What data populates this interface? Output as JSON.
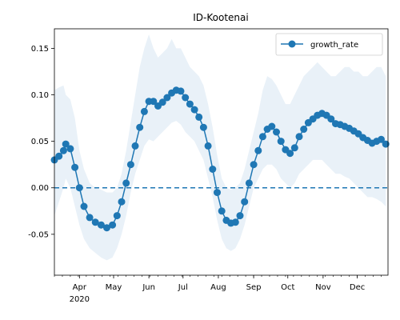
{
  "chart_data": {
    "type": "line",
    "title": "ID-Kootenai",
    "xlabel": "",
    "ylabel": "",
    "xlim": [
      "2020-03-10",
      "2020-12-28"
    ],
    "ylim": [
      -0.094,
      0.171
    ],
    "x_ticks": [
      {
        "date": "2020-04-01",
        "label": "Apr"
      },
      {
        "date": "2020-05-01",
        "label": "May"
      },
      {
        "date": "2020-06-01",
        "label": "Jun"
      },
      {
        "date": "2020-07-01",
        "label": "Jul"
      },
      {
        "date": "2020-08-01",
        "label": "Aug"
      },
      {
        "date": "2020-09-01",
        "label": "Sep"
      },
      {
        "date": "2020-10-01",
        "label": "Oct"
      },
      {
        "date": "2020-11-01",
        "label": "Nov"
      },
      {
        "date": "2020-12-01",
        "label": "Dec"
      }
    ],
    "year_label": "2020",
    "y_ticks": [
      "-0.05",
      "0.00",
      "0.05",
      "0.10",
      "0.15"
    ],
    "reference_line": {
      "value": 0,
      "style": "dashed"
    },
    "legend": {
      "position": "top-right",
      "entries": [
        "growth_rate"
      ]
    },
    "colors": {
      "line": "#1f77b4",
      "band": "#dbe8f4"
    },
    "series": [
      {
        "name": "growth_rate",
        "points": [
          [
            "2020-03-10",
            0.03,
            -0.03,
            0.105
          ],
          [
            "2020-03-14",
            0.034,
            -0.015,
            0.108
          ],
          [
            "2020-03-18",
            0.04,
            0.0,
            0.11
          ],
          [
            "2020-03-20",
            0.047,
            0.01,
            0.1
          ],
          [
            "2020-03-24",
            0.042,
            0.0,
            0.095
          ],
          [
            "2020-03-28",
            0.022,
            -0.02,
            0.075
          ],
          [
            "2020-04-01",
            0.0,
            -0.04,
            0.04
          ],
          [
            "2020-04-05",
            -0.02,
            -0.055,
            0.02
          ],
          [
            "2020-04-10",
            -0.032,
            -0.065,
            0.005
          ],
          [
            "2020-04-15",
            -0.037,
            -0.07,
            0.0
          ],
          [
            "2020-04-20",
            -0.04,
            -0.075,
            -0.002
          ],
          [
            "2020-04-25",
            -0.043,
            -0.078,
            -0.005
          ],
          [
            "2020-04-30",
            -0.04,
            -0.075,
            -0.005
          ],
          [
            "2020-05-04",
            -0.03,
            -0.065,
            0.0
          ],
          [
            "2020-05-08",
            -0.015,
            -0.05,
            0.015
          ],
          [
            "2020-05-12",
            0.005,
            -0.03,
            0.04
          ],
          [
            "2020-05-16",
            0.025,
            -0.005,
            0.07
          ],
          [
            "2020-05-20",
            0.045,
            0.015,
            0.1
          ],
          [
            "2020-05-24",
            0.065,
            0.03,
            0.13
          ],
          [
            "2020-05-28",
            0.082,
            0.045,
            0.15
          ],
          [
            "2020-06-01",
            0.093,
            0.052,
            0.165
          ],
          [
            "2020-06-05",
            0.093,
            0.05,
            0.15
          ],
          [
            "2020-06-09",
            0.088,
            0.055,
            0.14
          ],
          [
            "2020-06-13",
            0.092,
            0.06,
            0.145
          ],
          [
            "2020-06-17",
            0.097,
            0.065,
            0.15
          ],
          [
            "2020-06-21",
            0.102,
            0.07,
            0.16
          ],
          [
            "2020-06-25",
            0.105,
            0.072,
            0.15
          ],
          [
            "2020-06-29",
            0.104,
            0.068,
            0.15
          ],
          [
            "2020-07-03",
            0.097,
            0.06,
            0.14
          ],
          [
            "2020-07-07",
            0.09,
            0.055,
            0.13
          ],
          [
            "2020-07-11",
            0.084,
            0.05,
            0.125
          ],
          [
            "2020-07-15",
            0.076,
            0.04,
            0.12
          ],
          [
            "2020-07-19",
            0.065,
            0.03,
            0.11
          ],
          [
            "2020-07-23",
            0.045,
            0.01,
            0.09
          ],
          [
            "2020-07-27",
            0.02,
            -0.01,
            0.065
          ],
          [
            "2020-07-31",
            -0.005,
            -0.035,
            0.035
          ],
          [
            "2020-08-04",
            -0.025,
            -0.055,
            0.01
          ],
          [
            "2020-08-08",
            -0.035,
            -0.065,
            0.0
          ],
          [
            "2020-08-12",
            -0.038,
            -0.068,
            -0.002
          ],
          [
            "2020-08-16",
            -0.037,
            -0.065,
            0.0
          ],
          [
            "2020-08-20",
            -0.03,
            -0.055,
            0.005
          ],
          [
            "2020-08-24",
            -0.015,
            -0.04,
            0.02
          ],
          [
            "2020-08-28",
            0.005,
            -0.02,
            0.04
          ],
          [
            "2020-09-01",
            0.025,
            0.0,
            0.06
          ],
          [
            "2020-09-05",
            0.04,
            0.01,
            0.08
          ],
          [
            "2020-09-09",
            0.055,
            0.02,
            0.105
          ],
          [
            "2020-09-13",
            0.063,
            0.025,
            0.12
          ],
          [
            "2020-09-17",
            0.066,
            0.025,
            0.117
          ],
          [
            "2020-09-21",
            0.06,
            0.02,
            0.11
          ],
          [
            "2020-09-25",
            0.05,
            0.01,
            0.1
          ],
          [
            "2020-09-29",
            0.041,
            0.005,
            0.09
          ],
          [
            "2020-10-03",
            0.037,
            0.0,
            0.09
          ],
          [
            "2020-10-07",
            0.043,
            0.005,
            0.1
          ],
          [
            "2020-10-11",
            0.055,
            0.015,
            0.11
          ],
          [
            "2020-10-15",
            0.063,
            0.02,
            0.12
          ],
          [
            "2020-10-19",
            0.07,
            0.025,
            0.125
          ],
          [
            "2020-10-23",
            0.074,
            0.03,
            0.13
          ],
          [
            "2020-10-27",
            0.078,
            0.03,
            0.135
          ],
          [
            "2020-10-31",
            0.08,
            0.03,
            0.13
          ],
          [
            "2020-11-04",
            0.078,
            0.025,
            0.125
          ],
          [
            "2020-11-08",
            0.074,
            0.02,
            0.12
          ],
          [
            "2020-11-12",
            0.069,
            0.015,
            0.12
          ],
          [
            "2020-11-16",
            0.068,
            0.015,
            0.125
          ],
          [
            "2020-11-20",
            0.066,
            0.012,
            0.13
          ],
          [
            "2020-11-24",
            0.064,
            0.01,
            0.13
          ],
          [
            "2020-11-28",
            0.061,
            0.005,
            0.125
          ],
          [
            "2020-12-02",
            0.058,
            0.0,
            0.125
          ],
          [
            "2020-12-06",
            0.054,
            -0.005,
            0.12
          ],
          [
            "2020-12-10",
            0.051,
            -0.01,
            0.12
          ],
          [
            "2020-12-14",
            0.048,
            -0.01,
            0.125
          ],
          [
            "2020-12-18",
            0.05,
            -0.012,
            0.13
          ],
          [
            "2020-12-22",
            0.052,
            -0.015,
            0.13
          ],
          [
            "2020-12-26",
            0.047,
            -0.02,
            0.12
          ]
        ]
      }
    ]
  }
}
